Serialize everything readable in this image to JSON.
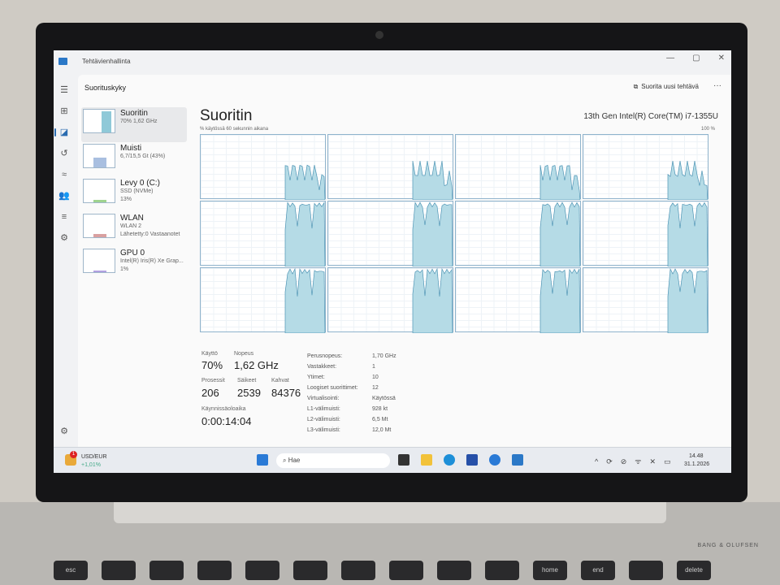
{
  "window": {
    "title": "Tehtävienhallinta",
    "minimize": "—",
    "maximize": "▢",
    "close": "✕"
  },
  "rail": {
    "icons": [
      "menu-icon",
      "processes-icon",
      "performance-icon",
      "app-history-icon",
      "startup-icon",
      "users-icon",
      "details-icon",
      "services-icon",
      "settings-icon"
    ],
    "glyphs": [
      "☰",
      "⊞",
      "◪",
      "↺",
      "≈",
      "👥",
      "≡",
      "⚙",
      "⚙"
    ]
  },
  "header": {
    "title": "Suorituskyky",
    "run_task": "Suorita uusi tehtävä",
    "more": "···"
  },
  "sidebar": {
    "items": [
      {
        "name": "Suoritin",
        "sub1": "70% 1,62 GHz",
        "sub2": ""
      },
      {
        "name": "Muisti",
        "sub1": "6,7/15,5 Gt (43%)",
        "sub2": ""
      },
      {
        "name": "Levy 0 (C:)",
        "sub1": "SSD (NVMe)",
        "sub2": "13%"
      },
      {
        "name": "WLAN",
        "sub1": "WLAN 2",
        "sub2": "Lähetetty:0 Vastaanotet"
      },
      {
        "name": "GPU 0",
        "sub1": "Intel(R) Iris(R) Xe Grap...",
        "sub2": "1%"
      }
    ]
  },
  "main": {
    "title": "Suoritin",
    "model": "13th Gen Intel(R) Core(TM) i7-1355U",
    "axis_left": "% käytössä 60 sekunnin aikana",
    "axis_right": "100 %",
    "core_count": 12,
    "graph_color": "#b5dbe6"
  },
  "stats": {
    "usage_label": "Käyttö",
    "usage": "70%",
    "speed_label": "Nopeus",
    "speed": "1,62 GHz",
    "proc_label": "Prosessit",
    "proc": "206",
    "threads_label": "Säikeet",
    "threads": "2539",
    "handles_label": "Kahvat",
    "handles": "84376",
    "uptime_label": "Käynnissäoloaika",
    "uptime": "0:00:14:04",
    "details": [
      {
        "k": "Perusnopeus:",
        "v": "1,70 GHz"
      },
      {
        "k": "Vastakkeet:",
        "v": "1"
      },
      {
        "k": "Ytimet:",
        "v": "10"
      },
      {
        "k": "Loogiset suorittimet:",
        "v": "12"
      },
      {
        "k": "Virtualisointi:",
        "v": "Käytössä"
      },
      {
        "k": "L1-välimuisti:",
        "v": "928 kt"
      },
      {
        "k": "L2-välimuisti:",
        "v": "6,5 Mt"
      },
      {
        "k": "L3-välimuisti:",
        "v": "12,0 Mt"
      }
    ]
  },
  "taskbar": {
    "widget_title": "USD/EUR",
    "widget_value": "+1,01%",
    "badge": "1",
    "search": "Hae",
    "time": "14.48",
    "date": "31.1.2026"
  },
  "laptop": {
    "brand": "BANG & OLUFSEN",
    "keys": [
      "esc",
      "",
      "",
      "",
      "",
      "",
      "",
      "",
      "",
      "",
      "home",
      "end",
      "",
      "delete"
    ]
  }
}
